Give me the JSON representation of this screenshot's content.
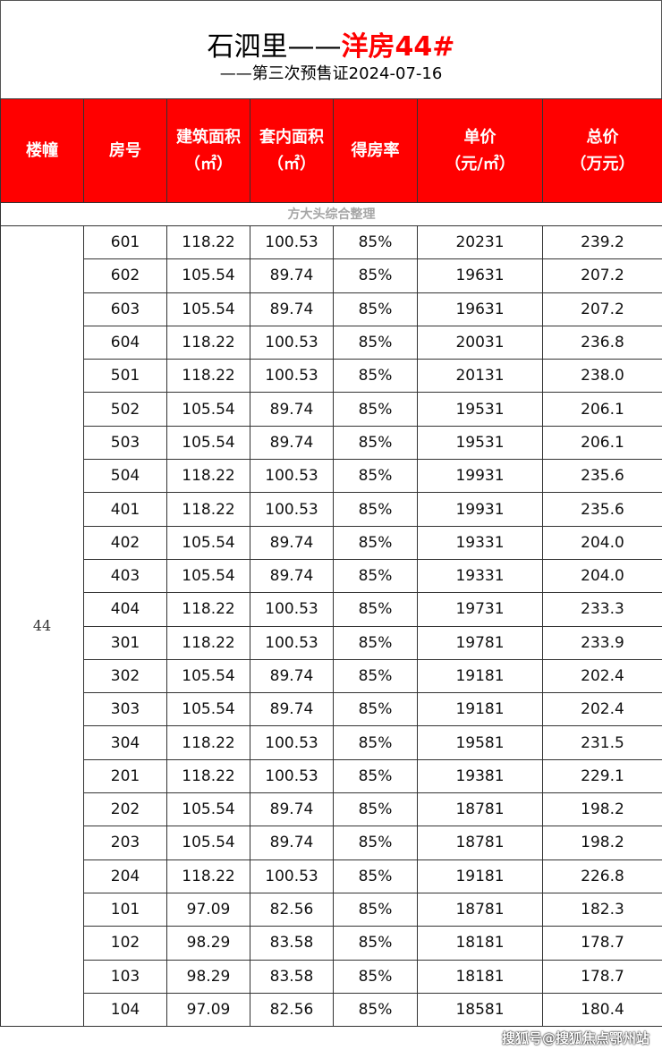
{
  "title": {
    "main": "石泗里——",
    "highlight": "洋房44#",
    "sub": "——第三次预售证2024-07-16"
  },
  "headers": [
    "楼幢",
    "房号",
    "建筑面积\n（㎡）",
    "套内面积\n（㎡）",
    "得房率",
    "单价\n（元/㎡）",
    "总价\n（万元）"
  ],
  "note": "方大头综合整理",
  "building": "44",
  "rows": [
    [
      "601",
      "118.22",
      "100.53",
      "85%",
      "20231",
      "239.2"
    ],
    [
      "602",
      "105.54",
      "89.74",
      "85%",
      "19631",
      "207.2"
    ],
    [
      "603",
      "105.54",
      "89.74",
      "85%",
      "19631",
      "207.2"
    ],
    [
      "604",
      "118.22",
      "100.53",
      "85%",
      "20031",
      "236.8"
    ],
    [
      "501",
      "118.22",
      "100.53",
      "85%",
      "20131",
      "238.0"
    ],
    [
      "502",
      "105.54",
      "89.74",
      "85%",
      "19531",
      "206.1"
    ],
    [
      "503",
      "105.54",
      "89.74",
      "85%",
      "19531",
      "206.1"
    ],
    [
      "504",
      "118.22",
      "100.53",
      "85%",
      "19931",
      "235.6"
    ],
    [
      "401",
      "118.22",
      "100.53",
      "85%",
      "19931",
      "235.6"
    ],
    [
      "402",
      "105.54",
      "89.74",
      "85%",
      "19331",
      "204.0"
    ],
    [
      "403",
      "105.54",
      "89.74",
      "85%",
      "19331",
      "204.0"
    ],
    [
      "404",
      "118.22",
      "100.53",
      "85%",
      "19731",
      "233.3"
    ],
    [
      "301",
      "118.22",
      "100.53",
      "85%",
      "19781",
      "233.9"
    ],
    [
      "302",
      "105.54",
      "89.74",
      "85%",
      "19181",
      "202.4"
    ],
    [
      "303",
      "105.54",
      "89.74",
      "85%",
      "19181",
      "202.4"
    ],
    [
      "304",
      "118.22",
      "100.53",
      "85%",
      "19581",
      "231.5"
    ],
    [
      "201",
      "118.22",
      "100.53",
      "85%",
      "19381",
      "229.1"
    ],
    [
      "202",
      "105.54",
      "89.74",
      "85%",
      "18781",
      "198.2"
    ],
    [
      "203",
      "105.54",
      "89.74",
      "85%",
      "18781",
      "198.2"
    ],
    [
      "204",
      "118.22",
      "100.53",
      "85%",
      "19181",
      "226.8"
    ],
    [
      "101",
      "97.09",
      "82.56",
      "85%",
      "18781",
      "182.3"
    ],
    [
      "102",
      "98.29",
      "83.58",
      "85%",
      "18181",
      "178.7"
    ],
    [
      "103",
      "98.29",
      "83.58",
      "85%",
      "18181",
      "178.7"
    ],
    [
      "104",
      "97.09",
      "82.56",
      "85%",
      "18581",
      "180.4"
    ]
  ],
  "watermark": "搜狐号@搜狐焦点鄂州站",
  "colors": {
    "header_bg": "#ff0000",
    "header_text": "#ffffff",
    "highlight": "#ff0000"
  }
}
